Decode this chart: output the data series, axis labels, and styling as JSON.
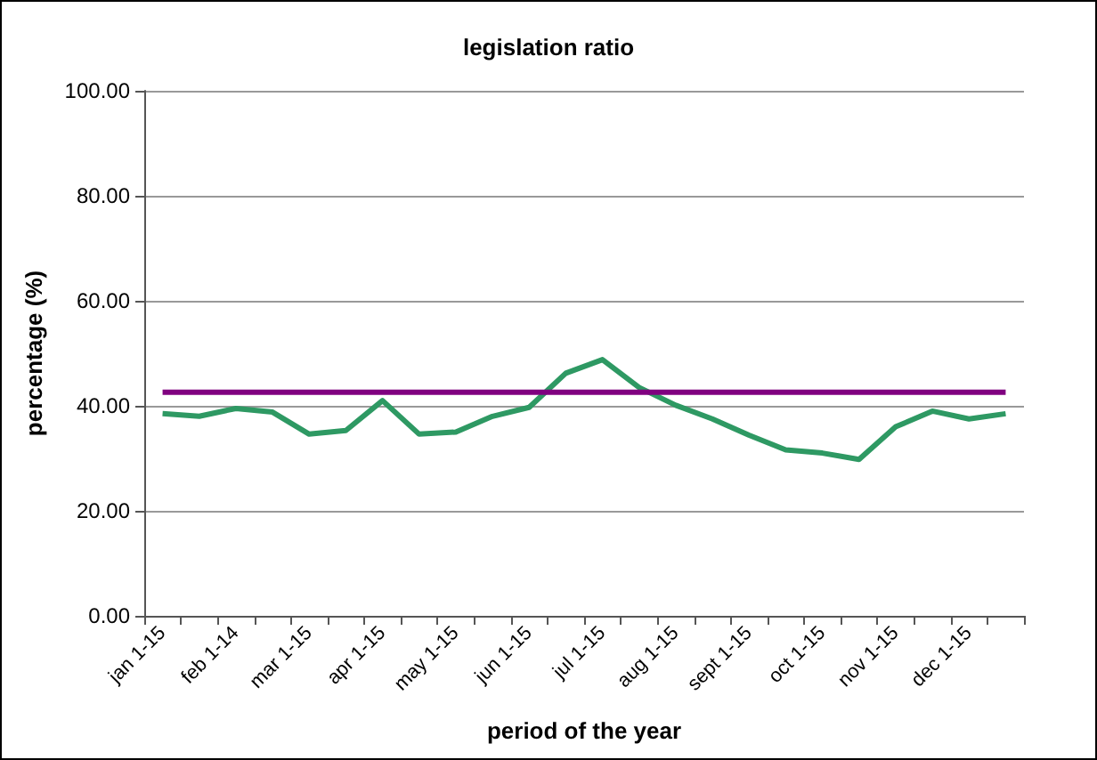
{
  "chart_data": {
    "type": "line",
    "title": "legislation ratio",
    "xlabel": "period of the year",
    "ylabel": "percentage (%)",
    "categories": [
      "jan 1-15",
      null,
      "feb 1-14",
      null,
      "mar 1-15",
      null,
      "apr 1-15",
      null,
      "may 1-15",
      null,
      "jun 1-15",
      null,
      "jul 1-15",
      null,
      "aug 1-15",
      null,
      "sept 1-15",
      null,
      "oct 1-15",
      null,
      "nov 1-15",
      null,
      "dec 1-15",
      null
    ],
    "series": [
      {
        "color": "#2e9963",
        "values": [
          38.5,
          38.0,
          39.5,
          38.8,
          34.6,
          35.3,
          41.0,
          34.6,
          35.0,
          38.0,
          39.7,
          46.2,
          48.8,
          43.5,
          40.1,
          37.5,
          34.4,
          31.6,
          31.0,
          29.8,
          36.0,
          39.0,
          37.5,
          38.5
        ]
      },
      {
        "color": "#800080",
        "values": [
          42.6,
          42.6,
          42.6,
          42.6,
          42.6,
          42.6,
          42.6,
          42.6,
          42.6,
          42.6,
          42.6,
          42.6,
          42.6,
          42.6,
          42.6,
          42.6,
          42.6,
          42.6,
          42.6,
          42.6,
          42.6,
          42.6,
          42.6,
          42.6
        ]
      }
    ],
    "ylim": [
      0,
      100
    ],
    "yticks": [
      {
        "value": 0,
        "label": "0.00"
      },
      {
        "value": 20,
        "label": "20.00"
      },
      {
        "value": 40,
        "label": "40.00"
      },
      {
        "value": 60,
        "label": "60.00"
      },
      {
        "value": 80,
        "label": "80.00"
      },
      {
        "value": 100,
        "label": "100.00"
      }
    ],
    "grid": "y",
    "marker": "none",
    "line_style": "solid"
  }
}
